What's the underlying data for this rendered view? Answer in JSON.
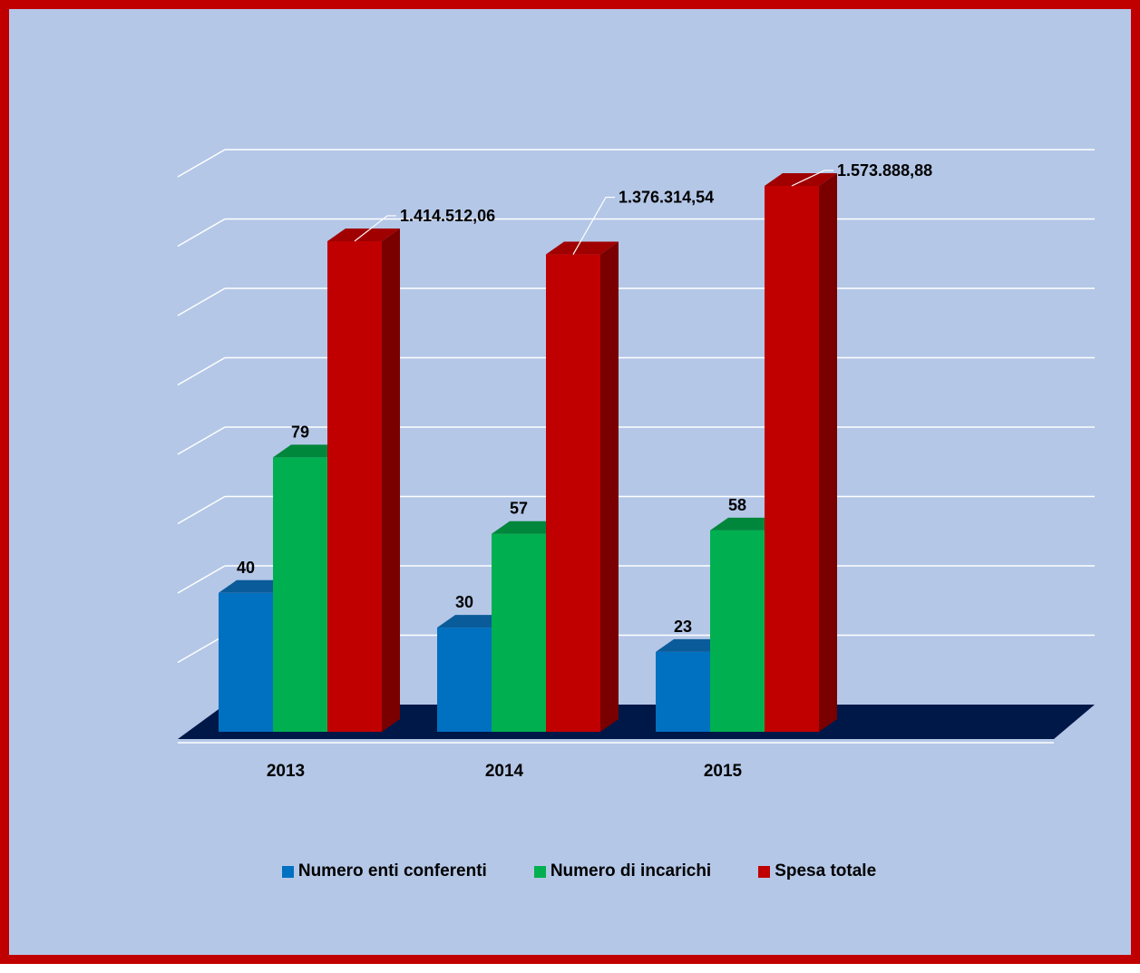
{
  "colors": {
    "frame": "#c00000",
    "background": "#b4c7e7",
    "floor": "#001848",
    "gridline": "#ffffff"
  },
  "chart_data": {
    "type": "bar",
    "categories": [
      "2013",
      "2014",
      "2015"
    ],
    "series": [
      {
        "name": "Numero enti conferenti",
        "values": [
          40,
          30,
          23
        ],
        "labels": [
          "40",
          "30",
          "23"
        ],
        "color": "#0070c0",
        "color_top": "#0a5b9a",
        "color_side": "#005596"
      },
      {
        "name": "Numero di incarichi",
        "values": [
          79,
          57,
          58
        ],
        "labels": [
          "79",
          "57",
          "58"
        ],
        "color": "#00b050",
        "color_top": "#00873c",
        "color_side": "#008a3e"
      },
      {
        "name": "Spesa totale",
        "values": [
          1414512.06,
          1376314.54,
          1573888.88
        ],
        "labels": [
          "1.414.512,06",
          "1.376.314,54",
          "1.573.888,88"
        ],
        "color": "#c00000",
        "color_top": "#a00000",
        "color_side": "#7a0000"
      }
    ],
    "title": "",
    "xlabel": "",
    "ylabel": "",
    "grid": true,
    "legend_position": "bottom",
    "three_d": true
  }
}
